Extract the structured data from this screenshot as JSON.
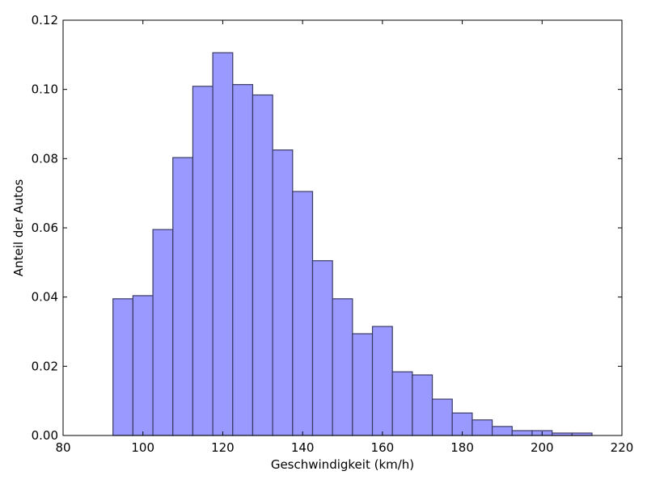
{
  "chart_data": {
    "type": "bar",
    "title": "",
    "xlabel": "Geschwindigkeit (km/h)",
    "ylabel": "Anteil der Autos",
    "xlim": [
      80,
      220
    ],
    "ylim": [
      0.0,
      0.12
    ],
    "grid": false,
    "bar_color": "#9999ff",
    "bar_edge_color": "#3a3a66",
    "bin_width": 5,
    "bins": [
      {
        "x_start": 92.5,
        "value": 0.0395
      },
      {
        "x_start": 97.5,
        "value": 0.0404
      },
      {
        "x_start": 102.5,
        "value": 0.0595
      },
      {
        "x_start": 107.5,
        "value": 0.0803
      },
      {
        "x_start": 112.5,
        "value": 0.1009
      },
      {
        "x_start": 117.5,
        "value": 0.1106
      },
      {
        "x_start": 122.5,
        "value": 0.1014
      },
      {
        "x_start": 127.5,
        "value": 0.0984
      },
      {
        "x_start": 132.5,
        "value": 0.0825
      },
      {
        "x_start": 137.5,
        "value": 0.0705
      },
      {
        "x_start": 142.5,
        "value": 0.0505
      },
      {
        "x_start": 147.5,
        "value": 0.0395
      },
      {
        "x_start": 152.5,
        "value": 0.0294
      },
      {
        "x_start": 157.5,
        "value": 0.0315
      },
      {
        "x_start": 162.5,
        "value": 0.0184
      },
      {
        "x_start": 167.5,
        "value": 0.0175
      },
      {
        "x_start": 172.5,
        "value": 0.0105
      },
      {
        "x_start": 177.5,
        "value": 0.0065
      },
      {
        "x_start": 182.5,
        "value": 0.0045
      },
      {
        "x_start": 187.5,
        "value": 0.0026
      },
      {
        "x_start": 192.5,
        "value": 0.0014
      },
      {
        "x_start": 197.5,
        "value": 0.0014
      },
      {
        "x_start": 202.5,
        "value": 0.0007
      },
      {
        "x_start": 207.5,
        "value": 0.0007
      }
    ],
    "x_ticks": [
      {
        "value": 80,
        "label": "80"
      },
      {
        "value": 100,
        "label": "100"
      },
      {
        "value": 120,
        "label": "120"
      },
      {
        "value": 140,
        "label": "140"
      },
      {
        "value": 160,
        "label": "160"
      },
      {
        "value": 180,
        "label": "180"
      },
      {
        "value": 200,
        "label": "200"
      },
      {
        "value": 220,
        "label": "220"
      }
    ],
    "y_ticks": [
      {
        "value": 0.0,
        "label": "0.00"
      },
      {
        "value": 0.02,
        "label": "0.02"
      },
      {
        "value": 0.04,
        "label": "0.04"
      },
      {
        "value": 0.06,
        "label": "0.06"
      },
      {
        "value": 0.08,
        "label": "0.08"
      },
      {
        "value": 0.1,
        "label": "0.10"
      },
      {
        "value": 0.12,
        "label": "0.12"
      }
    ]
  }
}
